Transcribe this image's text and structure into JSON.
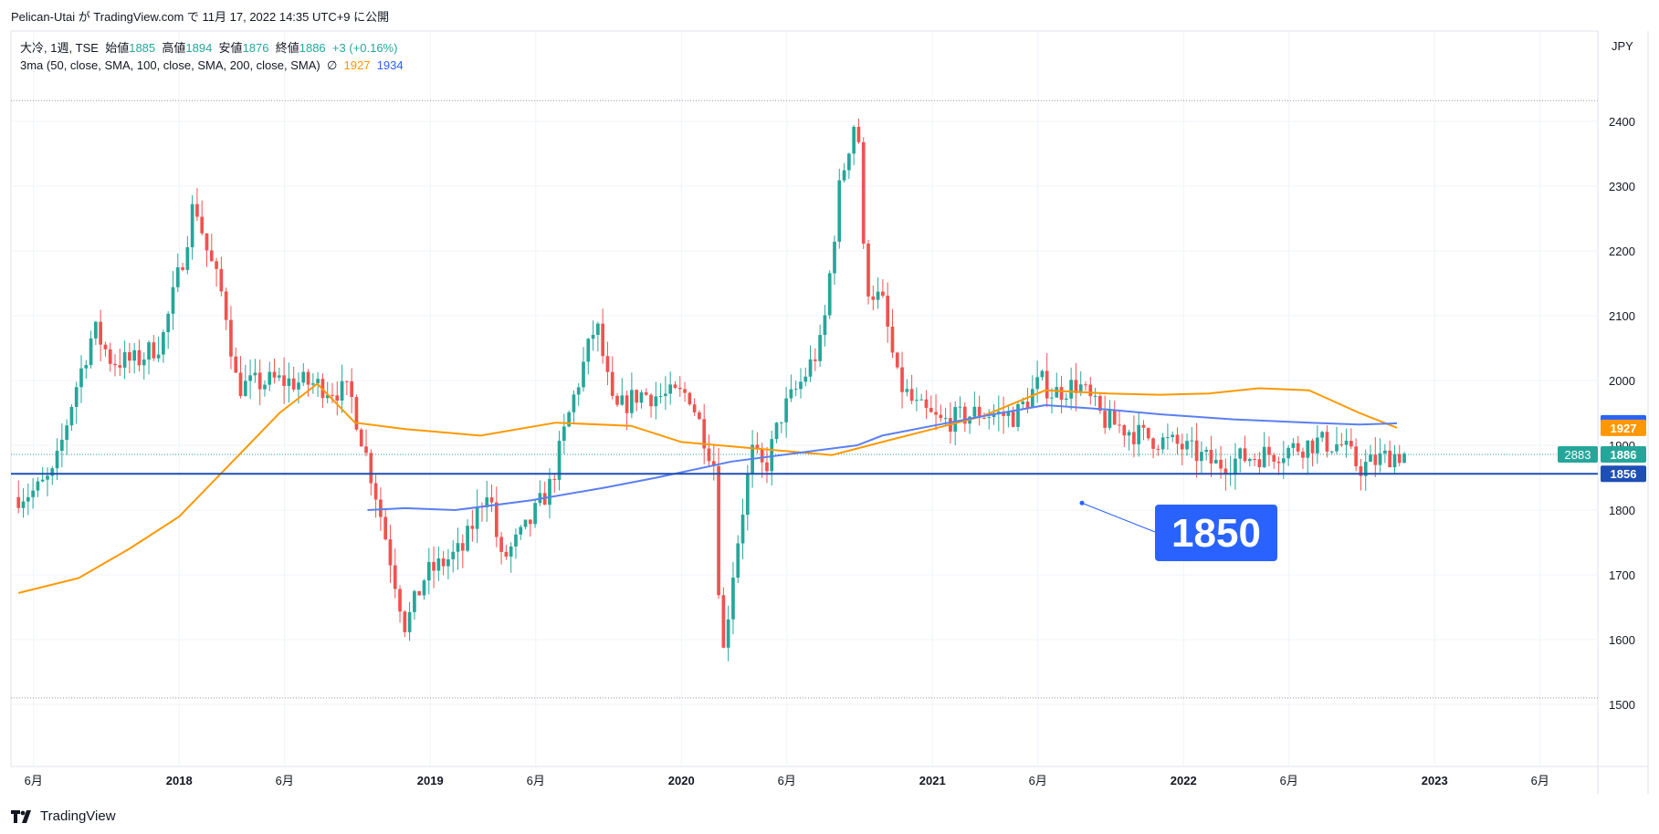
{
  "header": {
    "publisher": "Pelican-Utai",
    "caption": "Pelican-Utai が TradingView.com で 11月 17, 2022 14:35 UTC+9 に公開"
  },
  "legend": {
    "symbol": "大冷, 1週, TSE",
    "open_label": "始値",
    "open": "1885",
    "high_label": "高値",
    "high": "1894",
    "low_label": "安値",
    "low": "1876",
    "close_label": "終値",
    "close": "1886",
    "change": "+3 (+0.16%)",
    "ma_label": "3ma (50, close, SMA, 100, close, SMA, 200, close, SMA)",
    "ma_na": "∅",
    "ma2_value": "1927",
    "ma3_value": "1934"
  },
  "annotation": {
    "text": "1850"
  },
  "footer": {
    "brand": "TradingView"
  },
  "colors": {
    "up": "#26a69a",
    "down": "#ef5350",
    "ma100": "#ff9800",
    "ma200": "#5b7ff0",
    "hline": "#1e4fb4",
    "callout": "#2962ff"
  },
  "chart_data": {
    "type": "candlestick",
    "currency": "JPY",
    "ylim": [
      1400,
      2500
    ],
    "y_ticks": [
      1500,
      1600,
      1700,
      1800,
      1900,
      2000,
      2100,
      2200,
      2300,
      2400
    ],
    "x_ticks": [
      {
        "label": "6月",
        "t": 2017.42
      },
      {
        "label": "2018",
        "t": 2018.0
      },
      {
        "label": "6月",
        "t": 2018.42
      },
      {
        "label": "2019",
        "t": 2019.0
      },
      {
        "label": "6月",
        "t": 2019.42
      },
      {
        "label": "2020",
        "t": 2020.0
      },
      {
        "label": "6月",
        "t": 2020.42
      },
      {
        "label": "2021",
        "t": 2021.0
      },
      {
        "label": "6月",
        "t": 2021.42
      },
      {
        "label": "2022",
        "t": 2022.0
      },
      {
        "label": "6月",
        "t": 2022.42
      },
      {
        "label": "2023",
        "t": 2023.0
      },
      {
        "label": "6月",
        "t": 2023.42
      }
    ],
    "price_labels": [
      {
        "value": 1934,
        "label": "1934",
        "color": "#2962ff"
      },
      {
        "value": 1927,
        "label": "1927",
        "color": "#ff9800"
      },
      {
        "value": 1886,
        "label": "1886",
        "color": "#26a69a",
        "tag": "2883"
      },
      {
        "value": 1856,
        "label": "1856",
        "color": "#1e4fb4"
      }
    ],
    "horizontal_line": 1856,
    "dotted_lines": [
      2432,
      1886,
      1510
    ],
    "ma100": [
      [
        2017.36,
        1672
      ],
      [
        2017.6,
        1695
      ],
      [
        2017.8,
        1740
      ],
      [
        2018.0,
        1790
      ],
      [
        2018.2,
        1870
      ],
      [
        2018.4,
        1950
      ],
      [
        2018.55,
        1995
      ],
      [
        2018.7,
        1935
      ],
      [
        2018.9,
        1925
      ],
      [
        2019.2,
        1915
      ],
      [
        2019.5,
        1935
      ],
      [
        2019.8,
        1930
      ],
      [
        2020.0,
        1905
      ],
      [
        2020.3,
        1895
      ],
      [
        2020.6,
        1885
      ],
      [
        2020.8,
        1905
      ],
      [
        2021.0,
        1925
      ],
      [
        2021.2,
        1945
      ],
      [
        2021.45,
        1985
      ],
      [
        2021.7,
        1980
      ],
      [
        2021.9,
        1978
      ],
      [
        2022.1,
        1980
      ],
      [
        2022.3,
        1988
      ],
      [
        2022.5,
        1985
      ],
      [
        2022.7,
        1950
      ],
      [
        2022.85,
        1927
      ]
    ],
    "ma200": [
      [
        2018.75,
        1800
      ],
      [
        2018.9,
        1803
      ],
      [
        2019.1,
        1800
      ],
      [
        2019.4,
        1815
      ],
      [
        2019.7,
        1835
      ],
      [
        2019.9,
        1850
      ],
      [
        2020.2,
        1875
      ],
      [
        2020.5,
        1890
      ],
      [
        2020.7,
        1900
      ],
      [
        2020.8,
        1915
      ],
      [
        2021.0,
        1930
      ],
      [
        2021.2,
        1945
      ],
      [
        2021.45,
        1962
      ],
      [
        2021.7,
        1955
      ],
      [
        2021.9,
        1948
      ],
      [
        2022.2,
        1940
      ],
      [
        2022.5,
        1935
      ],
      [
        2022.7,
        1932
      ],
      [
        2022.85,
        1934
      ]
    ],
    "ohlc_anchors": [
      [
        2017.36,
        1820
      ],
      [
        2017.45,
        1830
      ],
      [
        2017.52,
        1855
      ],
      [
        2017.6,
        1980
      ],
      [
        2017.68,
        2080
      ],
      [
        2017.75,
        2030
      ],
      [
        2017.85,
        2030
      ],
      [
        2017.95,
        2060
      ],
      [
        2018.04,
        2200
      ],
      [
        2018.08,
        2280
      ],
      [
        2018.13,
        2200
      ],
      [
        2018.2,
        2120
      ],
      [
        2018.25,
        1990
      ],
      [
        2018.4,
        2000
      ],
      [
        2018.55,
        1995
      ],
      [
        2018.7,
        1980
      ],
      [
        2018.8,
        1830
      ],
      [
        2018.92,
        1620
      ],
      [
        2019.0,
        1700
      ],
      [
        2019.15,
        1740
      ],
      [
        2019.25,
        1840
      ],
      [
        2019.3,
        1720
      ],
      [
        2019.4,
        1770
      ],
      [
        2019.5,
        1840
      ],
      [
        2019.58,
        1960
      ],
      [
        2019.68,
        2090
      ],
      [
        2019.75,
        1950
      ],
      [
        2019.85,
        1980
      ],
      [
        2019.95,
        1975
      ],
      [
        2020.05,
        1980
      ],
      [
        2020.15,
        1870
      ],
      [
        2020.18,
        1560
      ],
      [
        2020.23,
        1720
      ],
      [
        2020.3,
        1890
      ],
      [
        2020.35,
        1860
      ],
      [
        2020.42,
        1950
      ],
      [
        2020.5,
        2000
      ],
      [
        2020.58,
        2060
      ],
      [
        2020.65,
        2300
      ],
      [
        2020.72,
        2420
      ],
      [
        2020.75,
        2150
      ],
      [
        2020.82,
        2120
      ],
      [
        2020.88,
        2000
      ],
      [
        2020.95,
        1960
      ],
      [
        2021.05,
        1935
      ],
      [
        2021.2,
        1950
      ],
      [
        2021.35,
        1945
      ],
      [
        2021.45,
        2000
      ],
      [
        2021.5,
        1980
      ],
      [
        2021.6,
        1995
      ],
      [
        2021.7,
        1940
      ],
      [
        2021.85,
        1915
      ],
      [
        2022.0,
        1900
      ],
      [
        2022.15,
        1870
      ],
      [
        2022.25,
        1880
      ],
      [
        2022.4,
        1890
      ],
      [
        2022.55,
        1905
      ],
      [
        2022.65,
        1900
      ],
      [
        2022.72,
        1865
      ],
      [
        2022.78,
        1875
      ],
      [
        2022.85,
        1886
      ]
    ]
  }
}
